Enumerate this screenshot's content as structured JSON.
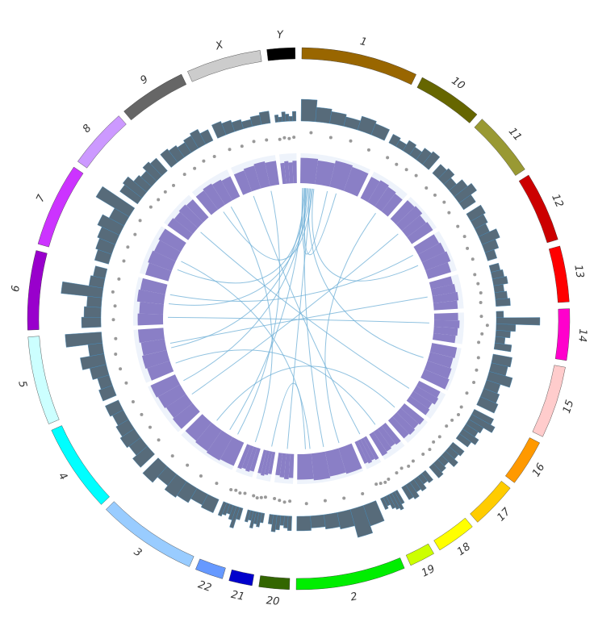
{
  "chart_data": {
    "type": "circos",
    "ylim": [
      0,
      1
    ],
    "link_color": "#6baed6",
    "histogram_color": "#1f3a4d",
    "density_color": "#8a7fc6",
    "scatter_color": "#999999",
    "chromosomes": [
      {
        "name": "1",
        "color": "#996600",
        "length": 25,
        "histogram": [
          0.45,
          0.3,
          0.25,
          0.2,
          0.3,
          0.25
        ],
        "density": [
          0.85,
          0.8,
          0.9,
          0.85
        ],
        "scatter": [
          0.7,
          0.6,
          0.65,
          0.55
        ]
      },
      {
        "name": "10",
        "color": "#666600",
        "length": 14,
        "histogram": [
          0.2,
          0.15,
          0.25,
          0.2,
          0.3,
          0.35
        ],
        "density": [
          0.8,
          0.85,
          0.8,
          0.75
        ],
        "scatter": [
          0.6,
          0.55,
          0.6,
          0.65
        ]
      },
      {
        "name": "11",
        "color": "#999933",
        "length": 14,
        "histogram": [
          0.25,
          0.3,
          0.2,
          0.35,
          0.45,
          0.3
        ],
        "density": [
          0.85,
          0.9,
          0.8,
          0.85
        ],
        "scatter": [
          0.55,
          0.6,
          0.7,
          0.6
        ]
      },
      {
        "name": "12",
        "color": "#cc0000",
        "length": 15,
        "histogram": [
          0.35,
          0.3,
          0.25,
          0.4,
          0.3,
          0.2
        ],
        "density": [
          0.8,
          0.85,
          0.9,
          0.8
        ],
        "scatter": [
          0.6,
          0.65,
          0.55,
          0.6
        ]
      },
      {
        "name": "13",
        "color": "#ff0000",
        "length": 12,
        "histogram": [
          0.2,
          0.25,
          0.3,
          0.2,
          0.25,
          0.3
        ],
        "density": [
          0.75,
          0.8,
          0.85,
          0.8
        ],
        "scatter": [
          0.5,
          0.55,
          0.6,
          0.55
        ]
      },
      {
        "name": "14",
        "color": "#ff00cc",
        "length": 11,
        "histogram": [
          0.15,
          0.9,
          0.4,
          0.3,
          0.2,
          0.35
        ],
        "density": [
          0.8,
          0.85,
          0.8,
          0.75
        ],
        "scatter": [
          0.55,
          0.8,
          0.6,
          0.5
        ]
      },
      {
        "name": "15",
        "color": "#ffcccc",
        "length": 15.5,
        "histogram": [
          0.4,
          0.35,
          0.5,
          0.3,
          0.35,
          0.4
        ],
        "density": [
          0.85,
          0.8,
          0.85,
          0.9
        ],
        "scatter": [
          0.6,
          0.65,
          0.7,
          0.6
        ]
      },
      {
        "name": "16",
        "color": "#ff9900",
        "length": 10,
        "histogram": [
          0.45,
          0.55,
          0.35,
          0.3,
          0.4,
          0.3
        ],
        "density": [
          0.8,
          0.85,
          0.75,
          0.8
        ],
        "scatter": [
          0.65,
          0.7,
          0.6,
          0.55
        ]
      },
      {
        "name": "17",
        "color": "#ffcc00",
        "length": 10,
        "histogram": [
          0.3,
          0.25,
          0.35,
          0.2,
          0.25,
          0.3
        ],
        "density": [
          0.85,
          0.8,
          0.85,
          0.8
        ],
        "scatter": [
          0.6,
          0.55,
          0.65,
          0.6
        ]
      },
      {
        "name": "18",
        "color": "#ffff00",
        "length": 8.5,
        "histogram": [
          0.25,
          0.2,
          0.3,
          0.25,
          0.35,
          0.3
        ],
        "density": [
          0.8,
          0.75,
          0.8,
          0.85
        ],
        "scatter": [
          0.55,
          0.6,
          0.5,
          0.55
        ]
      },
      {
        "name": "19",
        "color": "#ccff00",
        "length": 5.5,
        "histogram": [
          0.3,
          0.4,
          0.35,
          0.3,
          0.2,
          0.25
        ],
        "density": [
          0.85,
          0.8,
          0.85,
          0.8
        ],
        "scatter": [
          0.6,
          0.65,
          0.6,
          0.55
        ]
      },
      {
        "name": "2",
        "color": "#00ee00",
        "length": 23.5,
        "histogram": [
          0.45,
          0.6,
          0.35,
          0.3,
          0.25,
          0.3
        ],
        "density": [
          0.9,
          0.85,
          0.9,
          0.85
        ],
        "scatter": [
          0.7,
          0.65,
          0.6,
          0.65
        ]
      },
      {
        "name": "20",
        "color": "#336600",
        "length": 6.5,
        "histogram": [
          0.3,
          0.25,
          0.2,
          0.3,
          0.35,
          0.2
        ],
        "density": [
          0.8,
          0.85,
          0.8,
          0.75
        ],
        "scatter": [
          0.55,
          0.6,
          0.55,
          0.5
        ]
      },
      {
        "name": "21",
        "color": "#0000cc",
        "length": 5,
        "histogram": [
          0.2,
          0.3,
          0.25,
          0.35,
          0.2,
          0.25
        ],
        "density": [
          0.75,
          0.8,
          0.85,
          0.8
        ],
        "scatter": [
          0.5,
          0.55,
          0.6,
          0.55
        ]
      },
      {
        "name": "22",
        "color": "#6699ff",
        "length": 6,
        "histogram": [
          0.25,
          0.45,
          0.3,
          0.2,
          0.25,
          0.3
        ],
        "density": [
          0.8,
          0.85,
          0.8,
          0.85
        ],
        "scatter": [
          0.55,
          0.6,
          0.55,
          0.6
        ]
      },
      {
        "name": "3",
        "color": "#99ccff",
        "length": 21.5,
        "histogram": [
          0.3,
          0.25,
          0.35,
          0.4,
          0.3,
          0.45
        ],
        "density": [
          0.85,
          0.9,
          0.85,
          0.8
        ],
        "scatter": [
          0.6,
          0.65,
          0.6,
          0.7
        ]
      },
      {
        "name": "4",
        "color": "#00ffff",
        "length": 19,
        "histogram": [
          0.4,
          0.3,
          0.35,
          0.3,
          0.25,
          0.3
        ],
        "density": [
          0.85,
          0.8,
          0.85,
          0.9
        ],
        "scatter": [
          0.65,
          0.6,
          0.6,
          0.65
        ]
      },
      {
        "name": "5",
        "color": "#ccffff",
        "length": 19,
        "histogram": [
          0.3,
          0.25,
          0.35,
          0.5,
          0.3,
          0.75
        ],
        "density": [
          0.8,
          0.85,
          0.8,
          0.85
        ],
        "scatter": [
          0.6,
          0.65,
          0.7,
          0.6
        ]
      },
      {
        "name": "6",
        "color": "#9900cc",
        "length": 17,
        "histogram": [
          0.4,
          0.35,
          0.3,
          0.85,
          0.3,
          0.25
        ],
        "density": [
          0.85,
          0.8,
          0.9,
          0.85
        ],
        "scatter": [
          0.65,
          0.6,
          0.75,
          0.6
        ]
      },
      {
        "name": "7",
        "color": "#cc33ff",
        "length": 18,
        "histogram": [
          0.3,
          0.35,
          0.4,
          0.5,
          0.35,
          0.8
        ],
        "density": [
          0.8,
          0.85,
          0.8,
          0.85
        ],
        "scatter": [
          0.6,
          0.65,
          0.6,
          0.7
        ]
      },
      {
        "name": "8",
        "color": "#cc99ff",
        "length": 13,
        "histogram": [
          0.45,
          0.5,
          0.35,
          0.3,
          0.4,
          0.35
        ],
        "density": [
          0.85,
          0.8,
          0.85,
          0.8
        ],
        "scatter": [
          0.65,
          0.6,
          0.6,
          0.55
        ]
      },
      {
        "name": "9",
        "color": "#666666",
        "length": 14.5,
        "histogram": [
          0.35,
          0.3,
          0.25,
          0.3,
          0.35,
          0.25
        ],
        "density": [
          0.8,
          0.85,
          0.8,
          0.75
        ],
        "scatter": [
          0.6,
          0.55,
          0.6,
          0.55
        ]
      },
      {
        "name": "X",
        "color": "#cccccc",
        "length": 16,
        "histogram": [
          0.3,
          0.25,
          0.2,
          0.15,
          0.2,
          0.25
        ],
        "density": [
          0.75,
          0.8,
          0.85,
          0.8
        ],
        "scatter": [
          0.55,
          0.5,
          0.55,
          0.5
        ]
      },
      {
        "name": "Y",
        "color": "#000000",
        "length": 6,
        "histogram": [
          0.15,
          0.1,
          0.2,
          0.15,
          0.1,
          0.2
        ],
        "density": [
          0.7,
          0.75,
          0.7,
          0.75
        ],
        "scatter": [
          0.45,
          0.5,
          0.45,
          0.5
        ]
      }
    ],
    "links": [
      {
        "source": "1",
        "source_pos": 1.5,
        "target": "3",
        "target_pos": 8
      },
      {
        "source": "1",
        "source_pos": 2,
        "target": "5",
        "target_pos": 10
      },
      {
        "source": "1",
        "source_pos": 2.5,
        "target": "2",
        "target_pos": 12
      },
      {
        "source": "1",
        "source_pos": 3,
        "target": "7",
        "target_pos": 6
      },
      {
        "source": "1",
        "source_pos": 3.5,
        "target": "4",
        "target_pos": 15
      },
      {
        "source": "1",
        "source_pos": 4,
        "target": "15",
        "target_pos": 7
      },
      {
        "source": "1",
        "source_pos": 4.5,
        "target": "6",
        "target_pos": 9
      },
      {
        "source": "1",
        "source_pos": 5,
        "target": "20",
        "target_pos": 3
      },
      {
        "source": "1",
        "source_pos": 5.5,
        "target": "9",
        "target_pos": 5
      },
      {
        "source": "1",
        "source_pos": 6,
        "target": "12",
        "target_pos": 8
      },
      {
        "source": "1",
        "source_pos": 1,
        "target": "1",
        "target_pos": 12
      },
      {
        "source": "1",
        "source_pos": 2.2,
        "target": "1",
        "target_pos": 16
      },
      {
        "source": "X",
        "source_pos": 12,
        "target": "3",
        "target_pos": 4
      },
      {
        "source": "8",
        "source_pos": 6,
        "target": "16",
        "target_pos": 5
      },
      {
        "source": "6",
        "source_pos": 3,
        "target": "14",
        "target_pos": 4
      },
      {
        "source": "5",
        "source_pos": 12,
        "target": "13",
        "target_pos": 6
      },
      {
        "source": "4",
        "source_pos": 8,
        "target": "11",
        "target_pos": 7
      },
      {
        "source": "7",
        "source_pos": 10,
        "target": "2",
        "target_pos": 18
      },
      {
        "source": "9",
        "source_pos": 9,
        "target": "22",
        "target_pos": 3
      },
      {
        "source": "3",
        "source_pos": 15,
        "target": "17",
        "target_pos": 4
      },
      {
        "source": "2",
        "source_pos": 5,
        "target": "10",
        "target_pos": 9
      },
      {
        "source": "12",
        "source_pos": 3,
        "target": "6",
        "target_pos": 13
      },
      {
        "source": "21",
        "source_pos": 2,
        "target": "2",
        "target_pos": 20
      },
      {
        "source": "18",
        "source_pos": 4,
        "target": "5",
        "target_pos": 3
      },
      {
        "source": "X",
        "source_pos": 4,
        "target": "19",
        "target_pos": 2
      }
    ]
  }
}
